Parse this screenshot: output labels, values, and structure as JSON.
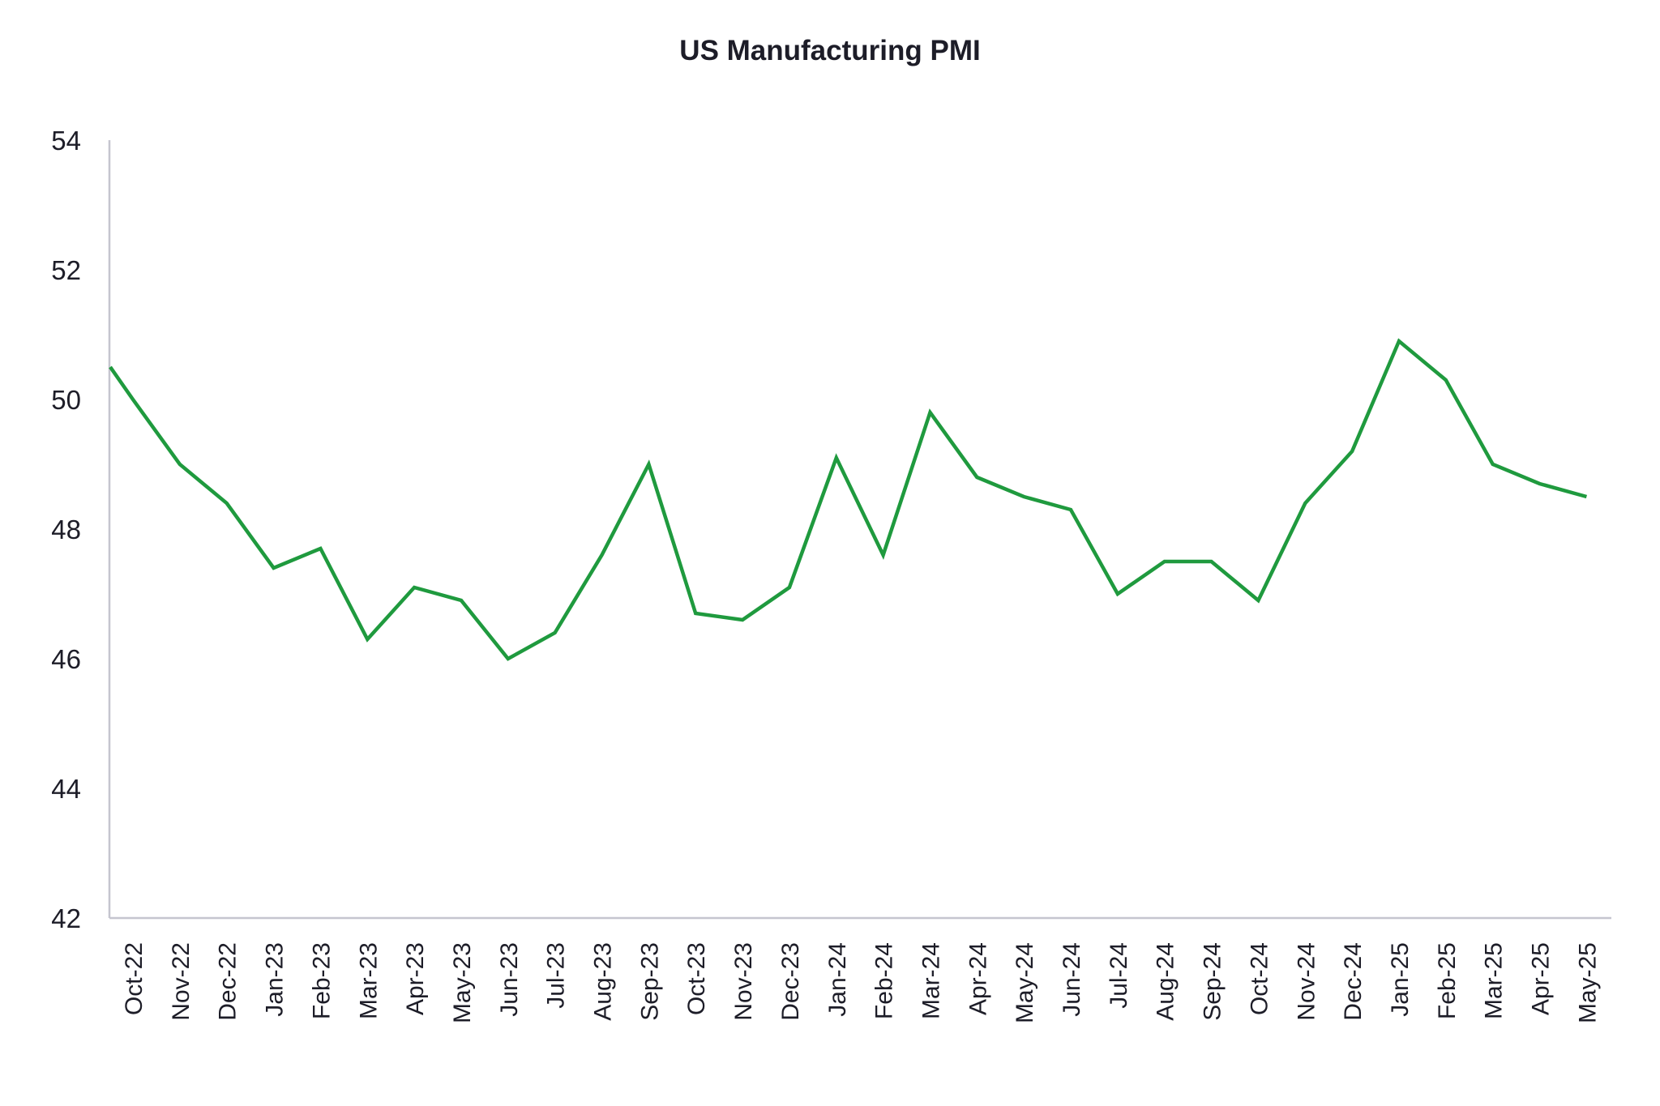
{
  "chart_data": {
    "type": "line",
    "title": "US Manufacturing PMI",
    "xlabel": "",
    "ylabel": "",
    "ylim": [
      42,
      54
    ],
    "yticks": [
      "42",
      "44",
      "46",
      "48",
      "50",
      "52",
      "54"
    ],
    "grid": false,
    "legend": "none",
    "categories": [
      "Oct-22",
      "Nov-22",
      "Dec-22",
      "Jan-23",
      "Feb-23",
      "Mar-23",
      "Apr-23",
      "May-23",
      "Jun-23",
      "Jul-23",
      "Aug-23",
      "Sep-23",
      "Oct-23",
      "Nov-23",
      "Dec-23",
      "Jan-24",
      "Feb-24",
      "Mar-24",
      "Apr-24",
      "May-24",
      "Jun-24",
      "Jul-24",
      "Aug-24",
      "Sep-24",
      "Oct-24",
      "Nov-24",
      "Dec-24",
      "Jan-25",
      "Feb-25",
      "Mar-25",
      "Apr-25",
      "May-25"
    ],
    "series": [
      {
        "name": "US Manufacturing PMI",
        "color": "#1f9a3e",
        "values": [
          50.0,
          49.0,
          48.4,
          47.4,
          47.7,
          46.3,
          47.1,
          46.9,
          46.0,
          46.4,
          47.6,
          49.0,
          46.7,
          46.6,
          47.1,
          49.1,
          47.6,
          49.8,
          48.8,
          48.5,
          48.3,
          47.0,
          47.5,
          47.5,
          46.9,
          48.4,
          49.2,
          50.9,
          50.3,
          49.0,
          48.7,
          48.5
        ]
      }
    ]
  },
  "colors": {
    "axis": "#c5c5cf",
    "text": "#1d1d28",
    "line": "#1f9a3e"
  }
}
